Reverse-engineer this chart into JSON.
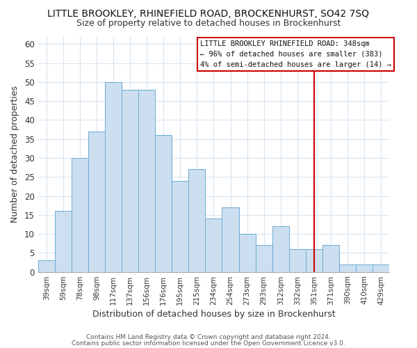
{
  "title": "LITTLE BROOKLEY, RHINEFIELD ROAD, BROCKENHURST, SO42 7SQ",
  "subtitle": "Size of property relative to detached houses in Brockenhurst",
  "xlabel": "Distribution of detached houses by size in Brockenhurst",
  "ylabel": "Number of detached properties",
  "footnote1": "Contains HM Land Registry data © Crown copyright and database right 2024.",
  "footnote2": "Contains public sector information licensed under the Open Government Licence v3.0.",
  "bar_labels": [
    "39sqm",
    "59sqm",
    "78sqm",
    "98sqm",
    "117sqm",
    "137sqm",
    "156sqm",
    "176sqm",
    "195sqm",
    "215sqm",
    "234sqm",
    "254sqm",
    "273sqm",
    "293sqm",
    "312sqm",
    "332sqm",
    "351sqm",
    "371sqm",
    "390sqm",
    "410sqm",
    "429sqm"
  ],
  "bar_values": [
    3,
    16,
    30,
    37,
    50,
    48,
    48,
    36,
    24,
    27,
    14,
    17,
    10,
    7,
    12,
    6,
    6,
    7,
    2,
    2,
    2
  ],
  "bar_color": "#ccdff0",
  "bar_edgecolor": "#6aaad4",
  "ylim": [
    0,
    62
  ],
  "yticks": [
    0,
    5,
    10,
    15,
    20,
    25,
    30,
    35,
    40,
    45,
    50,
    55,
    60
  ],
  "vline_x": 16,
  "vline_color": "#cc0000",
  "box_text_line1": "LITTLE BROOKLEY RHINEFIELD ROAD: 348sqm",
  "box_text_line2": "← 96% of detached houses are smaller (383)",
  "box_text_line3": "4% of semi-detached houses are larger (14) →",
  "background_color": "#ffffff",
  "grid_color": "#d8e4f0",
  "title_fontsize": 10,
  "subtitle_fontsize": 9
}
